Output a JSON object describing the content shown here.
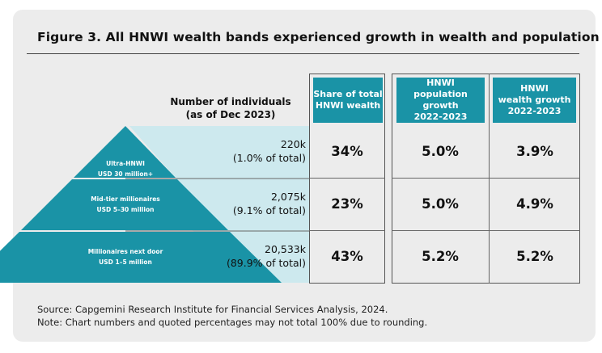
{
  "figure_title": "Figure 3. All HNWI wealth bands experienced growth in wealth and population",
  "source_line": "Source: Capgemini Research Institute for Financial Services Analysis, 2024.",
  "note_line": "Note: Chart numbers and quoted percentages may not total 100% due to rounding.",
  "colors": {
    "accent": "#1a93a6",
    "light_band": "#cde9ee",
    "background": "#ececec"
  },
  "chart_data": {
    "type": "table",
    "title": "Figure 3. All HNWI wealth bands experienced growth in wealth and population",
    "count_header": {
      "line1": "Number of individuals",
      "line2": "(as of Dec 2023)"
    },
    "columns": [
      {
        "line1": "Share of total",
        "line2": "HNWI wealth"
      },
      {
        "line1": "HNWI",
        "line2": "population growth",
        "line3": "2022-2023"
      },
      {
        "line1": "HNWI",
        "line2": "wealth growth",
        "line3": "2022-2023"
      }
    ],
    "rows": [
      {
        "tier": "Ultra-HNWI",
        "range": "USD 30 million+",
        "count": "220k",
        "count_share": "(1.0% of total)",
        "individuals_k": 220,
        "pct_of_total": 1.0,
        "wealth_share": "34%",
        "population_growth": "5.0%",
        "wealth_growth": "3.9%"
      },
      {
        "tier": "Mid-tier millionaires",
        "range": "USD 5–30 million",
        "count": "2,075k",
        "count_share": "(9.1% of total)",
        "individuals_k": 2075,
        "pct_of_total": 9.1,
        "wealth_share": "23%",
        "population_growth": "5.0%",
        "wealth_growth": "4.9%"
      },
      {
        "tier": "Millionaires next door",
        "range": "USD 1–5 million",
        "count": "20,533k",
        "count_share": "(89.9% of total)",
        "individuals_k": 20533,
        "pct_of_total": 89.9,
        "wealth_share": "43%",
        "population_growth": "5.2%",
        "wealth_growth": "5.2%"
      }
    ]
  }
}
